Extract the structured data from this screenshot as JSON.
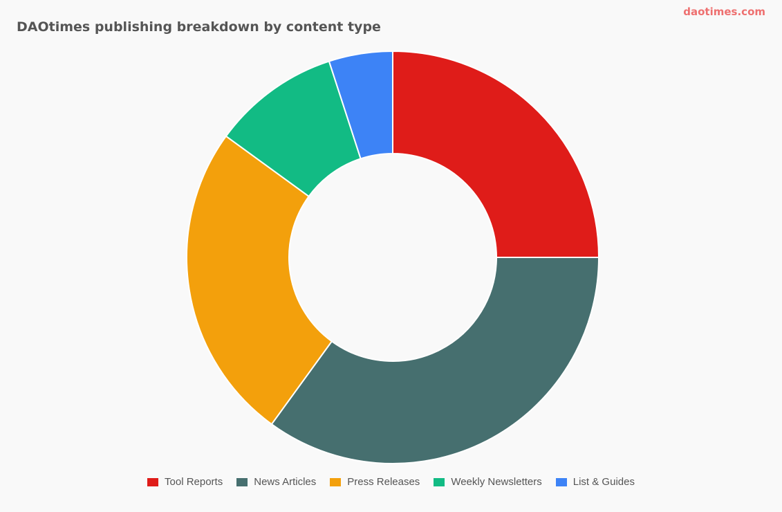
{
  "chart_data": {
    "type": "donut",
    "title": "DAOtimes publishing breakdown by content type",
    "watermark": "daotimes.com",
    "categories": [
      "Tool Reports",
      "News Articles",
      "Press Releases",
      "Weekly Newsletters",
      "List & Guides"
    ],
    "values": [
      25,
      35,
      25,
      10,
      5
    ],
    "colors": [
      "#df1c19",
      "#466f6f",
      "#f3a00c",
      "#12bb84",
      "#3d83f6"
    ],
    "legend": "bottom"
  }
}
